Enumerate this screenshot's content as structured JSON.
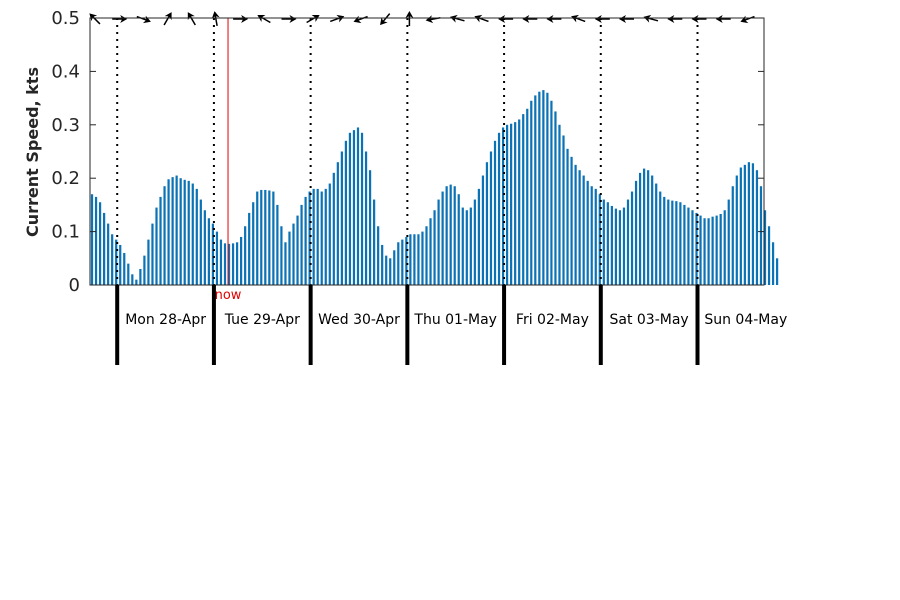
{
  "chart_data": {
    "type": "bar",
    "ylabel": "Current Speed, kts",
    "ylim": [
      0,
      0.5
    ],
    "yticks": [
      "0",
      "0.1",
      "0.2",
      "0.3",
      "0.4",
      "0.5"
    ],
    "bar_color": "#0b72b5",
    "now_color": "#e00000",
    "now_label": "now",
    "now_hour": 27.5,
    "x_start_hour": -6.75,
    "x_end_hour": 160.5,
    "hour_step": 1,
    "days": [
      {
        "label": "Mon 28-Apr",
        "start_hour": 0
      },
      {
        "label": "Tue 29-Apr",
        "start_hour": 24
      },
      {
        "label": "Wed 30-Apr",
        "start_hour": 48
      },
      {
        "label": "Thu 01-May",
        "start_hour": 72
      },
      {
        "label": "Fri 02-May",
        "start_hour": 96
      },
      {
        "label": "Sat 03-May",
        "start_hour": 120
      },
      {
        "label": "Sun 04-May",
        "start_hour": 144
      }
    ],
    "values": [
      0.17,
      0.165,
      0.155,
      0.135,
      0.115,
      0.095,
      0.085,
      0.075,
      0.06,
      0.04,
      0.02,
      0.01,
      0.03,
      0.055,
      0.085,
      0.115,
      0.145,
      0.165,
      0.185,
      0.198,
      0.202,
      0.205,
      0.2,
      0.197,
      0.195,
      0.19,
      0.18,
      0.16,
      0.14,
      0.125,
      0.115,
      0.1,
      0.085,
      0.078,
      0.077,
      0.078,
      0.08,
      0.09,
      0.11,
      0.135,
      0.155,
      0.175,
      0.178,
      0.178,
      0.177,
      0.175,
      0.15,
      0.11,
      0.08,
      0.1,
      0.115,
      0.13,
      0.15,
      0.165,
      0.175,
      0.18,
      0.18,
      0.175,
      0.18,
      0.19,
      0.21,
      0.23,
      0.25,
      0.27,
      0.285,
      0.29,
      0.295,
      0.285,
      0.25,
      0.215,
      0.16,
      0.11,
      0.075,
      0.055,
      0.05,
      0.065,
      0.08,
      0.085,
      0.09,
      0.095,
      0.095,
      0.095,
      0.1,
      0.11,
      0.125,
      0.14,
      0.16,
      0.175,
      0.185,
      0.188,
      0.185,
      0.17,
      0.145,
      0.14,
      0.145,
      0.16,
      0.18,
      0.205,
      0.23,
      0.25,
      0.27,
      0.285,
      0.295,
      0.3,
      0.302,
      0.305,
      0.31,
      0.32,
      0.33,
      0.345,
      0.355,
      0.362,
      0.365,
      0.36,
      0.345,
      0.325,
      0.3,
      0.28,
      0.255,
      0.24,
      0.225,
      0.215,
      0.205,
      0.195,
      0.185,
      0.18,
      0.17,
      0.16,
      0.155,
      0.148,
      0.143,
      0.14,
      0.145,
      0.16,
      0.175,
      0.195,
      0.21,
      0.218,
      0.215,
      0.205,
      0.19,
      0.175,
      0.165,
      0.16,
      0.158,
      0.157,
      0.155,
      0.15,
      0.145,
      0.14,
      0.135,
      0.13,
      0.125,
      0.125,
      0.128,
      0.13,
      0.133,
      0.14,
      0.16,
      0.185,
      0.205,
      0.22,
      0.225,
      0.23,
      0.228,
      0.215,
      0.185,
      0.14,
      0.11,
      0.08,
      0.05
    ],
    "direction_arrows": [
      {
        "hour": -5.5,
        "angle": -135
      },
      {
        "hour": 0.5,
        "angle": 0
      },
      {
        "hour": 6.5,
        "angle": 20
      },
      {
        "hour": 12.5,
        "angle": -60
      },
      {
        "hour": 18.5,
        "angle": -120
      },
      {
        "hour": 24.5,
        "angle": -100
      },
      {
        "hour": 30.5,
        "angle": 0
      },
      {
        "hour": 36.5,
        "angle": -150
      },
      {
        "hour": 42.5,
        "angle": 0
      },
      {
        "hour": 48.5,
        "angle": -30
      },
      {
        "hour": 54.5,
        "angle": -20
      },
      {
        "hour": 60.5,
        "angle": 160
      },
      {
        "hour": 66.5,
        "angle": 130
      },
      {
        "hour": 72.5,
        "angle": -90
      },
      {
        "hour": 78.5,
        "angle": 170
      },
      {
        "hour": 84.5,
        "angle": -165
      },
      {
        "hour": 90.5,
        "angle": -160
      },
      {
        "hour": 96.5,
        "angle": 180
      },
      {
        "hour": 102.5,
        "angle": 180
      },
      {
        "hour": 108.5,
        "angle": 180
      },
      {
        "hour": 114.5,
        "angle": -160
      },
      {
        "hour": 120.5,
        "angle": 180
      },
      {
        "hour": 126.5,
        "angle": 180
      },
      {
        "hour": 132.5,
        "angle": -165
      },
      {
        "hour": 138.5,
        "angle": 180
      },
      {
        "hour": 144.5,
        "angle": 180
      },
      {
        "hour": 150.5,
        "angle": 180
      },
      {
        "hour": 156.5,
        "angle": 160
      }
    ]
  }
}
